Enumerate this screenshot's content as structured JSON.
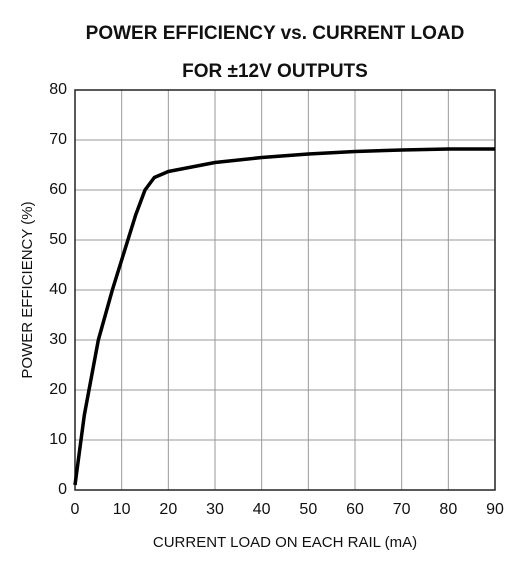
{
  "chart_data": {
    "type": "line",
    "title": "POWER EFFICIENCY vs. CURRENT LOAD",
    "subtitle": "FOR ±12V OUTPUTS",
    "x_label": "CURRENT LOAD ON EACH RAIL (mA)",
    "y_label": "POWER EFFICIENCY (%)",
    "x": [
      0,
      2,
      5,
      8,
      10,
      13,
      15,
      17,
      20,
      25,
      30,
      40,
      50,
      60,
      70,
      80,
      90
    ],
    "series": [
      {
        "name": "±12V",
        "color": "#000000",
        "values": [
          1,
          15,
          30,
          40,
          46,
          55,
          60,
          62.5,
          63.7,
          64.6,
          65.5,
          66.5,
          67.2,
          67.7,
          68,
          68.2,
          68.2
        ]
      }
    ],
    "xlim": [
      0,
      90
    ],
    "ylim": [
      0,
      80
    ],
    "xticks": [
      0,
      10,
      20,
      30,
      40,
      50,
      60,
      70,
      80,
      90
    ],
    "yticks": [
      0,
      10,
      20,
      30,
      40,
      50,
      60,
      70,
      80
    ],
    "grid": true
  }
}
